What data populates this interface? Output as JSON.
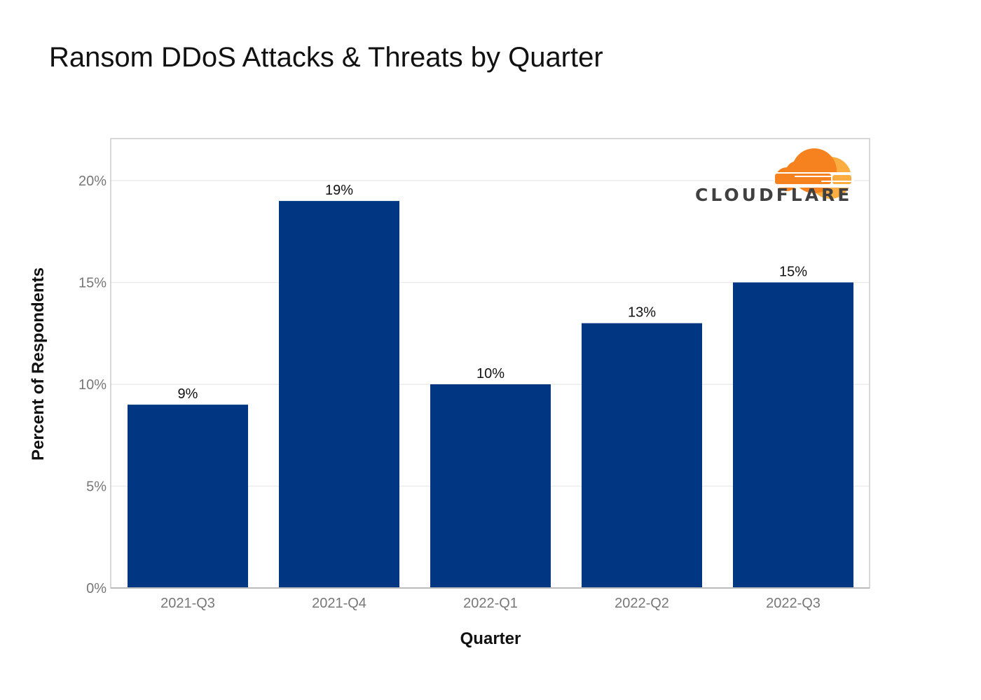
{
  "chart_data": {
    "type": "bar",
    "title": "Ransom DDoS Attacks & Threats by Quarter",
    "xlabel": "Quarter",
    "ylabel": "Percent of Respondents",
    "categories": [
      "2021-Q3",
      "2021-Q4",
      "2022-Q1",
      "2022-Q2",
      "2022-Q3"
    ],
    "values": [
      9,
      19,
      10,
      13,
      15
    ],
    "value_labels": [
      "9%",
      "19%",
      "10%",
      "13%",
      "15%"
    ],
    "ylim": [
      0,
      22
    ],
    "yticks": [
      0,
      5,
      10,
      15,
      20
    ],
    "ytick_labels": [
      "0%",
      "5%",
      "10%",
      "15%",
      "20%"
    ],
    "grid": true,
    "bar_color": "#003682"
  },
  "logo": {
    "text": "CLOUDFLARE",
    "colors": {
      "cloud_main": "#F6821F",
      "cloud_light": "#FBAD41",
      "text": "#404041"
    }
  }
}
